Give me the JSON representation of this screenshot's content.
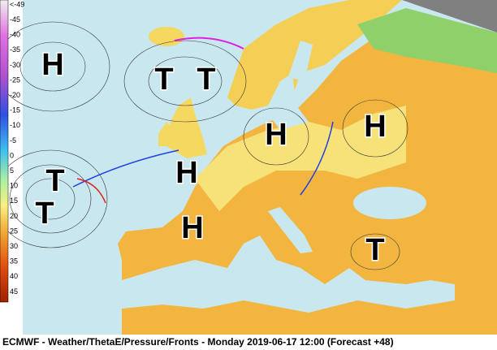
{
  "scale": {
    "labels": [
      "<-49",
      "-45",
      "-40",
      "-35",
      "-30",
      "-25",
      "-20",
      "-15",
      "-10",
      "-5",
      "0",
      "5",
      "10",
      "15",
      "20",
      "25",
      "30",
      "35",
      "40",
      "45"
    ]
  },
  "pressure_centers": [
    {
      "label": "H"
    },
    {
      "label": "T"
    },
    {
      "label": "T"
    },
    {
      "label": "H"
    },
    {
      "label": "H"
    },
    {
      "label": "H"
    },
    {
      "label": "T"
    },
    {
      "label": "T"
    },
    {
      "label": "H"
    },
    {
      "label": "T"
    }
  ],
  "footer": "ECMWF - Weather/ThetaE/Pressure/Fronts - Monday 2019-06-17 12:00 (Forecast +48)"
}
